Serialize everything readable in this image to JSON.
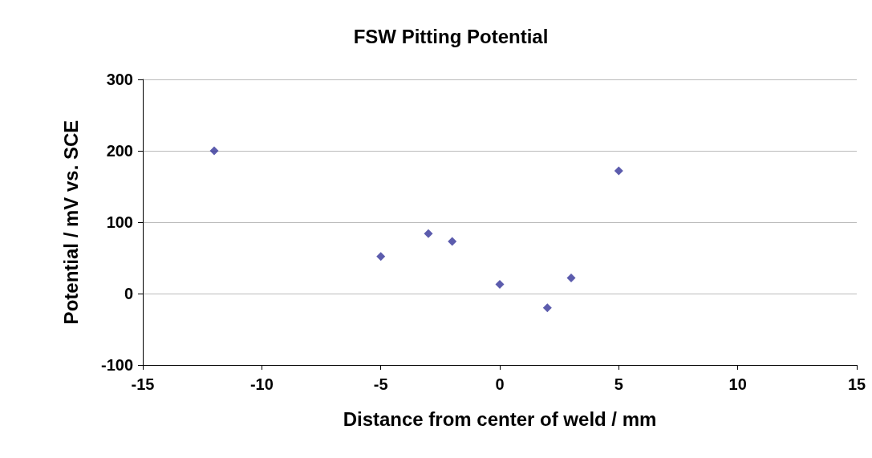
{
  "chart_data": {
    "type": "scatter",
    "title": "FSW Pitting Potential",
    "xlabel": "Distance from center of weld / mm",
    "ylabel": "Potential / mV vs. SCE",
    "x": [
      -12,
      -5,
      -3,
      -2,
      0,
      2,
      3,
      5
    ],
    "series": [
      {
        "color": "#333399",
        "values": [
          200,
          52,
          84,
          73,
          13,
          -20,
          22,
          172
        ]
      }
    ],
    "xlim": [
      -15,
      15
    ],
    "xticks": [
      -15,
      -10,
      -5,
      0,
      5,
      10,
      15
    ],
    "ylim": [
      -100,
      300
    ],
    "yticks": [
      -100,
      0,
      100,
      200,
      300
    ],
    "grid": "y",
    "marker": "diamond"
  }
}
